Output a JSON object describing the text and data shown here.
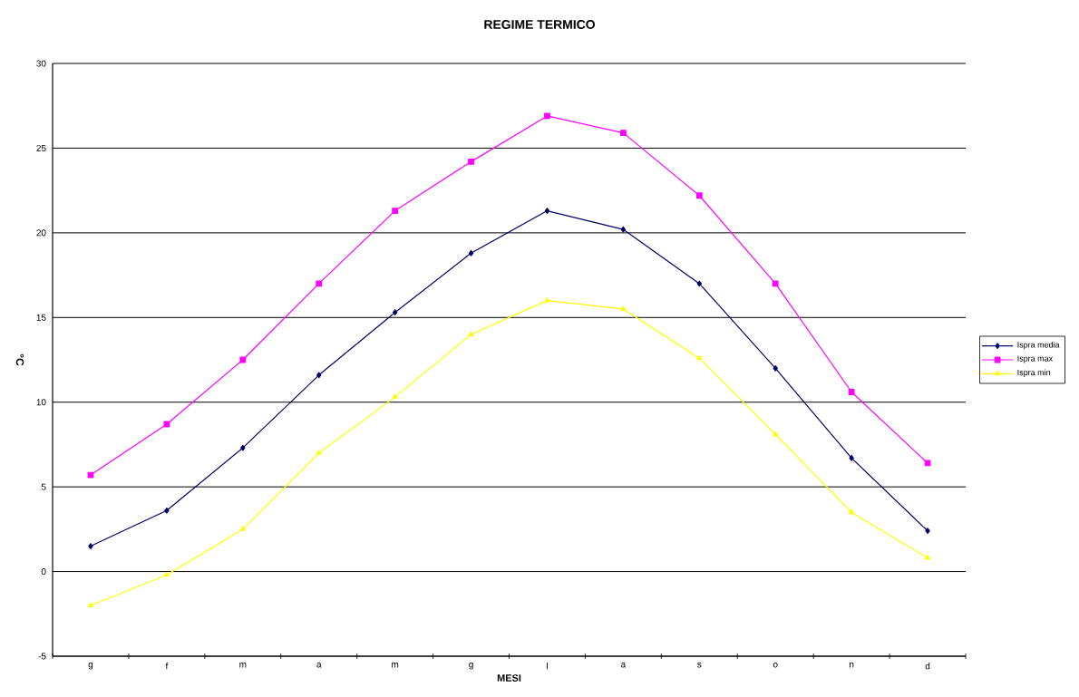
{
  "chart_data": {
    "type": "line",
    "title": "REGIME TERMICO",
    "xlabel": "MESI",
    "ylabel": "°C",
    "categories": [
      "g",
      "f",
      "m",
      "a",
      "m",
      "g",
      "l",
      "a",
      "s",
      "o",
      "n",
      "d"
    ],
    "series": [
      {
        "name": "Ispra media",
        "color": "#000066",
        "marker": "diamond",
        "values": [
          1.5,
          3.6,
          7.3,
          11.6,
          15.3,
          18.8,
          21.3,
          20.2,
          17.0,
          12.0,
          6.7,
          2.4
        ]
      },
      {
        "name": "Ispra max",
        "color": "#ff00ff",
        "marker": "square",
        "values": [
          5.7,
          8.7,
          12.5,
          17.0,
          21.3,
          24.2,
          26.9,
          25.9,
          22.2,
          17.0,
          10.6,
          6.4
        ]
      },
      {
        "name": "Ispra min",
        "color": "#ffff00",
        "marker": "triangle",
        "values": [
          -2.0,
          -0.2,
          2.5,
          7.0,
          10.3,
          14.0,
          16.0,
          15.5,
          12.6,
          8.1,
          3.5,
          0.8
        ]
      }
    ],
    "ylim": [
      -5,
      30
    ],
    "yticks": [
      -5,
      0,
      5,
      10,
      15,
      20,
      25,
      30
    ],
    "grid": "y",
    "legend": "right",
    "line_style": "solid"
  }
}
